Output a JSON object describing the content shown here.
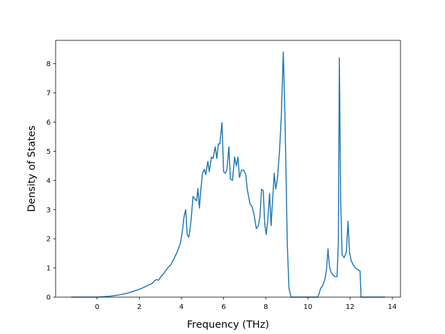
{
  "chart_data": {
    "type": "line",
    "title": "",
    "xlabel": "Frequency (THz)",
    "ylabel": "Density of States",
    "xlim": [
      -1.97,
      14.39
    ],
    "ylim": [
      0,
      8.8
    ],
    "grid": false,
    "line_color": "#1f77b4",
    "xticks": [
      0,
      2,
      4,
      6,
      8,
      10,
      12,
      14
    ],
    "yticks": [
      0,
      1,
      2,
      3,
      4,
      5,
      6,
      7,
      8
    ],
    "series": [
      {
        "points": [
          [
            -1.23,
            0
          ],
          [
            -0.5,
            0
          ],
          [
            0,
            0
          ],
          [
            0.2,
            0.01
          ],
          [
            0.4,
            0.02
          ],
          [
            0.6,
            0.03
          ],
          [
            0.8,
            0.05
          ],
          [
            1.0,
            0.07
          ],
          [
            1.2,
            0.1
          ],
          [
            1.4,
            0.13
          ],
          [
            1.6,
            0.17
          ],
          [
            1.8,
            0.22
          ],
          [
            2.0,
            0.27
          ],
          [
            2.2,
            0.33
          ],
          [
            2.4,
            0.4
          ],
          [
            2.6,
            0.46
          ],
          [
            2.72,
            0.56
          ],
          [
            2.8,
            0.6
          ],
          [
            2.92,
            0.58
          ],
          [
            3.0,
            0.68
          ],
          [
            3.2,
            0.85
          ],
          [
            3.35,
            1.0
          ],
          [
            3.5,
            1.12
          ],
          [
            3.65,
            1.33
          ],
          [
            3.8,
            1.55
          ],
          [
            3.95,
            1.85
          ],
          [
            4.05,
            2.3
          ],
          [
            4.12,
            2.75
          ],
          [
            4.2,
            3.0
          ],
          [
            4.27,
            2.15
          ],
          [
            4.35,
            2.05
          ],
          [
            4.45,
            2.6
          ],
          [
            4.55,
            3.45
          ],
          [
            4.65,
            3.35
          ],
          [
            4.72,
            3.3
          ],
          [
            4.78,
            3.72
          ],
          [
            4.85,
            3.05
          ],
          [
            4.92,
            3.7
          ],
          [
            5.0,
            4.25
          ],
          [
            5.08,
            4.38
          ],
          [
            5.15,
            4.2
          ],
          [
            5.25,
            4.65
          ],
          [
            5.32,
            4.3
          ],
          [
            5.42,
            4.8
          ],
          [
            5.5,
            4.75
          ],
          [
            5.6,
            5.15
          ],
          [
            5.68,
            4.75
          ],
          [
            5.75,
            5.25
          ],
          [
            5.82,
            5.25
          ],
          [
            5.92,
            5.98
          ],
          [
            6.0,
            4.3
          ],
          [
            6.08,
            4.25
          ],
          [
            6.15,
            4.35
          ],
          [
            6.25,
            5.15
          ],
          [
            6.32,
            4.05
          ],
          [
            6.42,
            4.0
          ],
          [
            6.52,
            4.8
          ],
          [
            6.6,
            4.5
          ],
          [
            6.68,
            4.8
          ],
          [
            6.75,
            4.1
          ],
          [
            6.85,
            4.35
          ],
          [
            6.95,
            4.35
          ],
          [
            7.05,
            4.2
          ],
          [
            7.12,
            3.7
          ],
          [
            7.25,
            3.2
          ],
          [
            7.35,
            3.1
          ],
          [
            7.45,
            2.8
          ],
          [
            7.55,
            2.35
          ],
          [
            7.65,
            2.45
          ],
          [
            7.72,
            2.75
          ],
          [
            7.8,
            3.7
          ],
          [
            7.88,
            3.65
          ],
          [
            7.95,
            2.5
          ],
          [
            8.02,
            2.15
          ],
          [
            8.1,
            2.7
          ],
          [
            8.18,
            3.55
          ],
          [
            8.25,
            2.45
          ],
          [
            8.32,
            3.3
          ],
          [
            8.4,
            4.25
          ],
          [
            8.47,
            3.7
          ],
          [
            8.55,
            4.05
          ],
          [
            8.65,
            5.0
          ],
          [
            8.73,
            6.1
          ],
          [
            8.78,
            7.2
          ],
          [
            8.83,
            8.4
          ],
          [
            8.9,
            6.5
          ],
          [
            8.97,
            3.8
          ],
          [
            9.02,
            1.8
          ],
          [
            9.1,
            0.3
          ],
          [
            9.2,
            0
          ],
          [
            9.5,
            0
          ],
          [
            10.0,
            0
          ],
          [
            10.45,
            0
          ],
          [
            10.52,
            0.1
          ],
          [
            10.6,
            0.3
          ],
          [
            10.7,
            0.4
          ],
          [
            10.8,
            0.6
          ],
          [
            10.88,
            0.95
          ],
          [
            10.95,
            1.65
          ],
          [
            11.02,
            1.05
          ],
          [
            11.1,
            0.85
          ],
          [
            11.2,
            0.75
          ],
          [
            11.3,
            0.7
          ],
          [
            11.38,
            0.7
          ],
          [
            11.44,
            1.8
          ],
          [
            11.49,
            8.2
          ],
          [
            11.55,
            3.4
          ],
          [
            11.62,
            1.45
          ],
          [
            11.72,
            1.35
          ],
          [
            11.82,
            1.55
          ],
          [
            11.9,
            2.6
          ],
          [
            11.97,
            1.55
          ],
          [
            12.05,
            1.25
          ],
          [
            12.15,
            1.1
          ],
          [
            12.25,
            1.0
          ],
          [
            12.35,
            0.95
          ],
          [
            12.42,
            0.92
          ],
          [
            12.47,
            0.9
          ],
          [
            12.52,
            0
          ],
          [
            13.0,
            0
          ],
          [
            13.66,
            0
          ]
        ]
      }
    ]
  }
}
